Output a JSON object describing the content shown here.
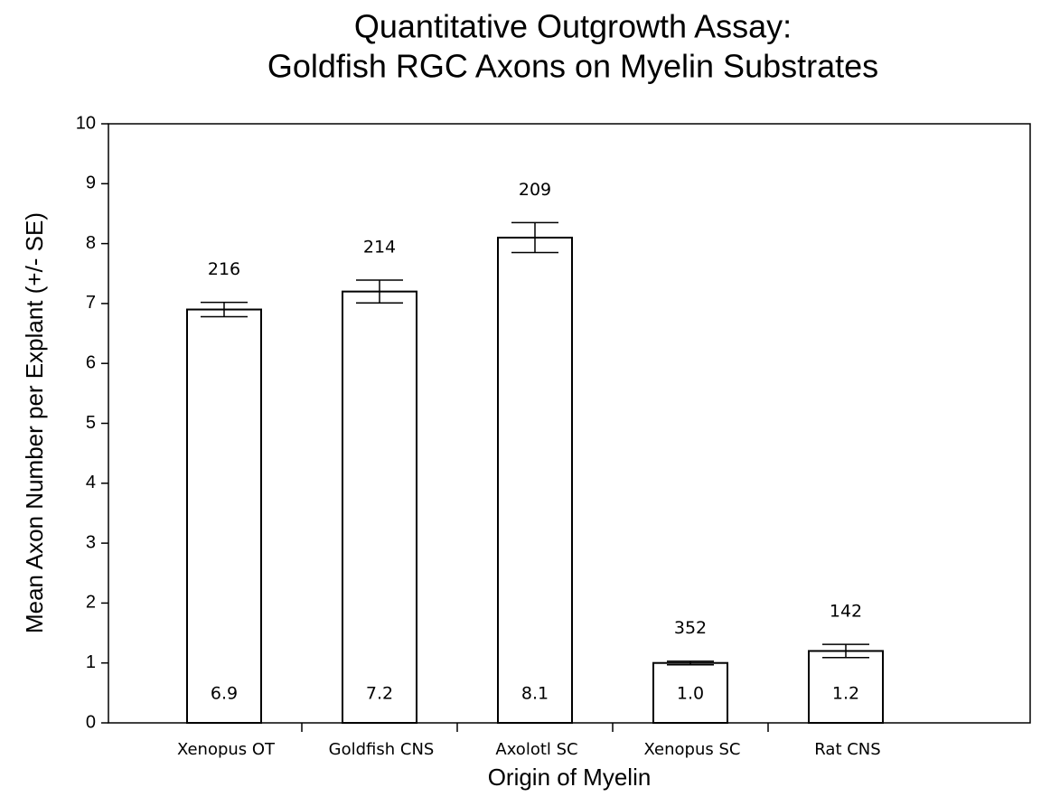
{
  "chart_data": {
    "type": "bar",
    "title": [
      "Quantitative Outgrowth Assay:",
      "Goldfish RGC Axons on Myelin Substrates"
    ],
    "x_label": "Origin of Myelin",
    "y_label": "Mean Axon Number per Explant (+/- SE)",
    "categories": [
      "Xenopus OT",
      "Goldfish CNS",
      "Axolotl SC",
      "Xenopus SC",
      "Rat CNS"
    ],
    "values": [
      6.9,
      7.2,
      8.1,
      1.0,
      1.2
    ],
    "value_labels": [
      "6.9",
      "7.2",
      "8.1",
      "1.0",
      "1.2"
    ],
    "errors": [
      0.12,
      0.19,
      0.25,
      0.03,
      0.11
    ],
    "counts": [
      216,
      214,
      209,
      352,
      142
    ],
    "color": "#ffffff",
    "ylim": [
      0,
      10
    ],
    "yticks": [
      0,
      1,
      2,
      3,
      4,
      5,
      6,
      7,
      8,
      9,
      10
    ],
    "grid": false
  }
}
